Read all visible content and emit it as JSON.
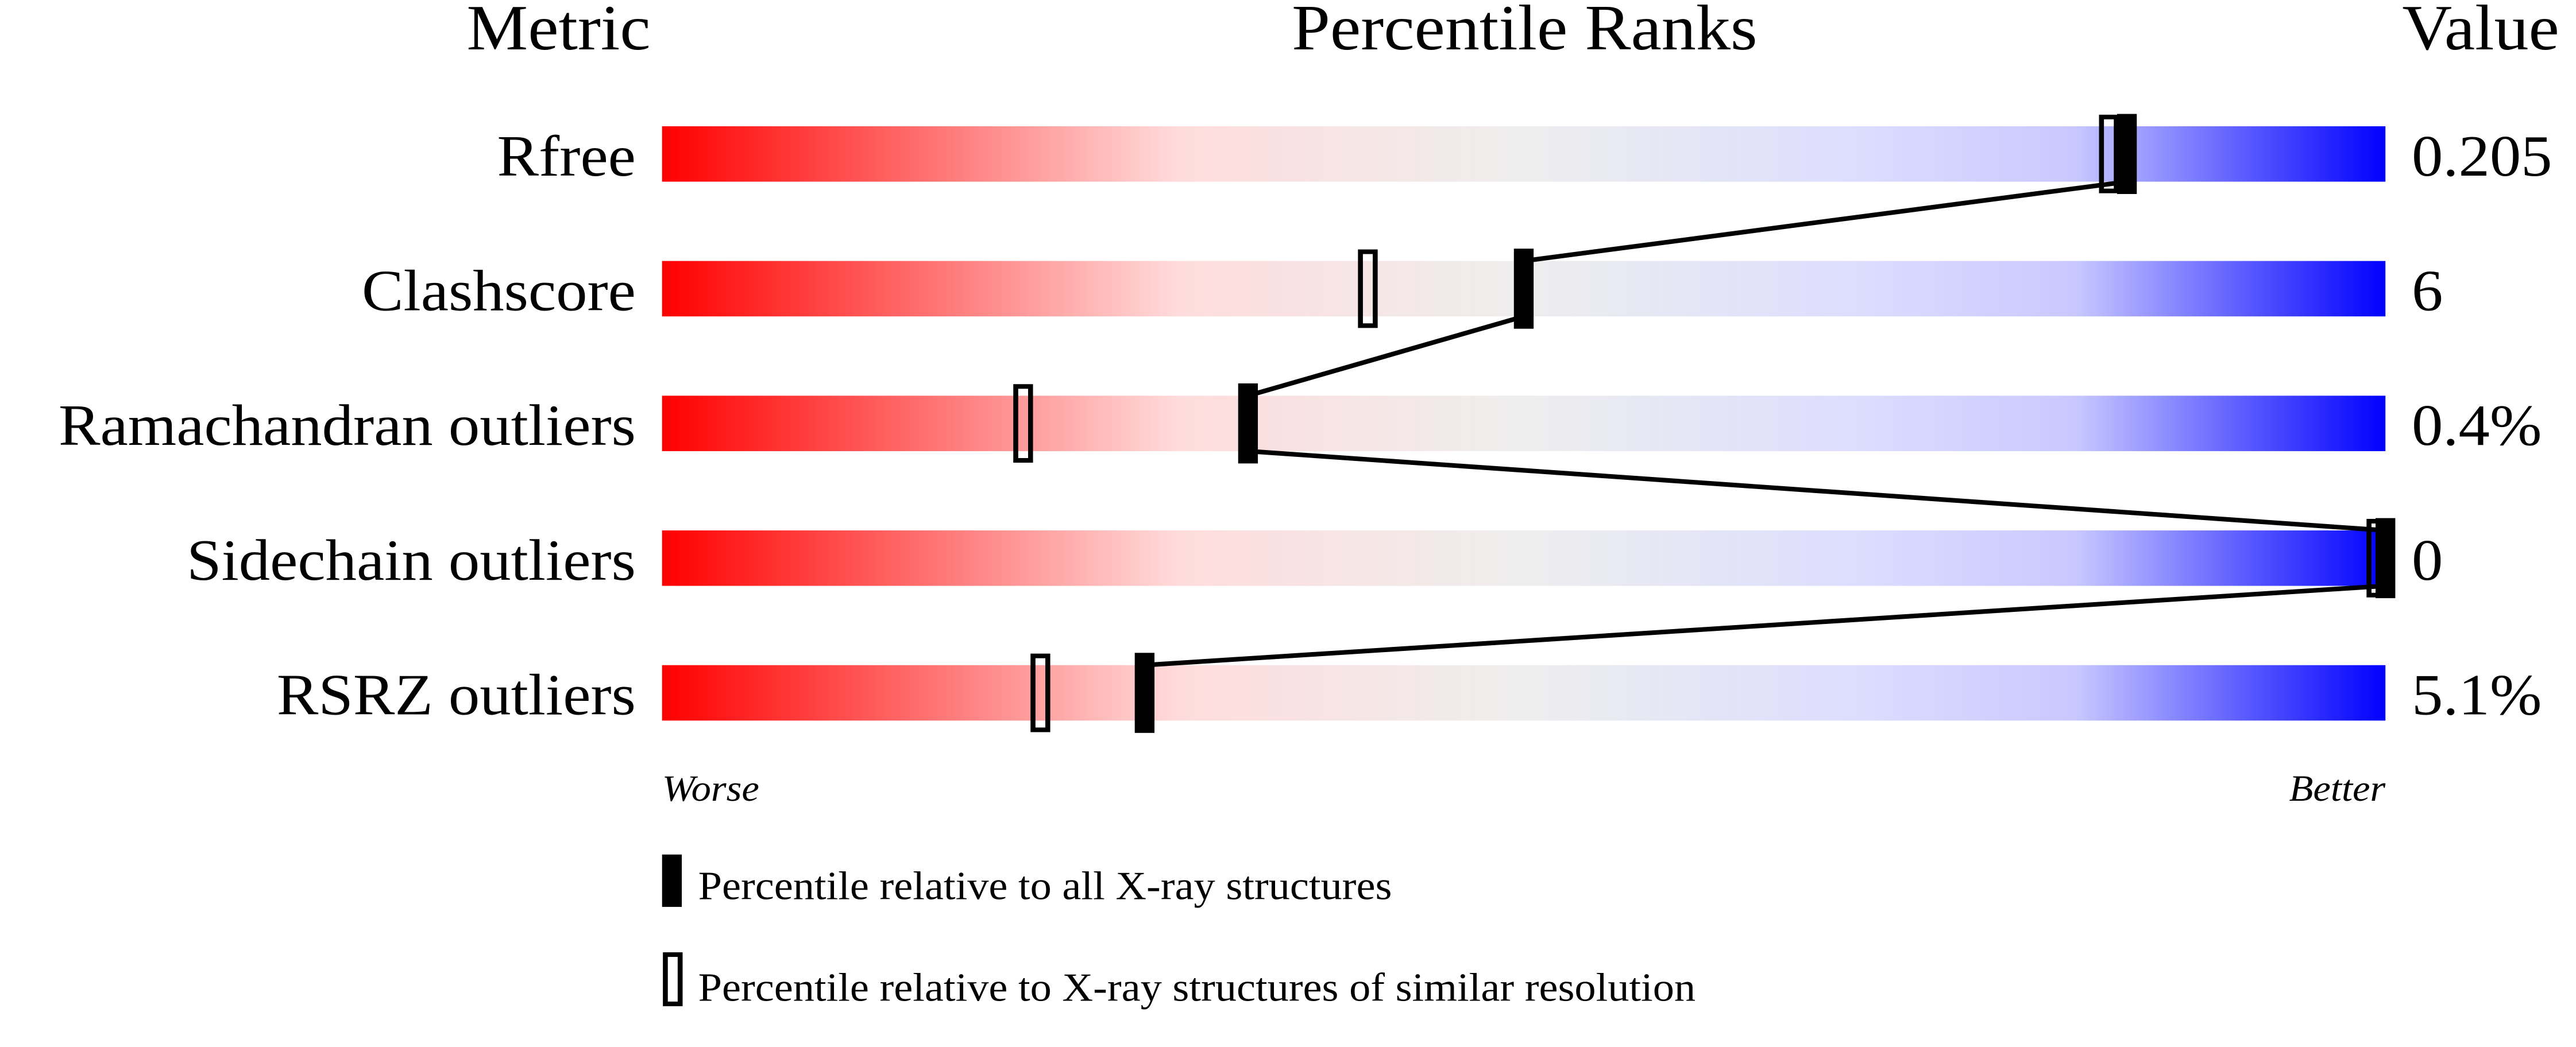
{
  "chart_data": {
    "type": "table",
    "headers": {
      "metric": "Metric",
      "ranks": "Percentile Ranks",
      "value": "Value"
    },
    "xlim": [
      0,
      100
    ],
    "rows": [
      {
        "metric": "Rfree",
        "value": "0.205",
        "percentile_all": 85,
        "percentile_similar": 84
      },
      {
        "metric": "Clashscore",
        "value": "6",
        "percentile_all": 50,
        "percentile_similar": 41
      },
      {
        "metric": "Ramachandran outliers",
        "value": "0.4%",
        "percentile_all": 34,
        "percentile_similar": 21
      },
      {
        "metric": "Sidechain outliers",
        "value": "0",
        "percentile_all": 100,
        "percentile_similar": 100
      },
      {
        "metric": "RSRZ outliers",
        "value": "5.1%",
        "percentile_all": 28,
        "percentile_similar": 22
      }
    ],
    "scale_labels": {
      "worse": "Worse",
      "better": "Better"
    },
    "legend": {
      "filled": "Percentile relative to all X-ray structures",
      "open": "Percentile relative to X-ray structures of similar resolution"
    },
    "colors": {
      "worse": "#ff0000",
      "mid_red": "#ffdcdc",
      "neutral": "#eeeeee",
      "mid_blue": "#dcdcff",
      "better": "#0000ff",
      "marker": "#000000"
    }
  }
}
